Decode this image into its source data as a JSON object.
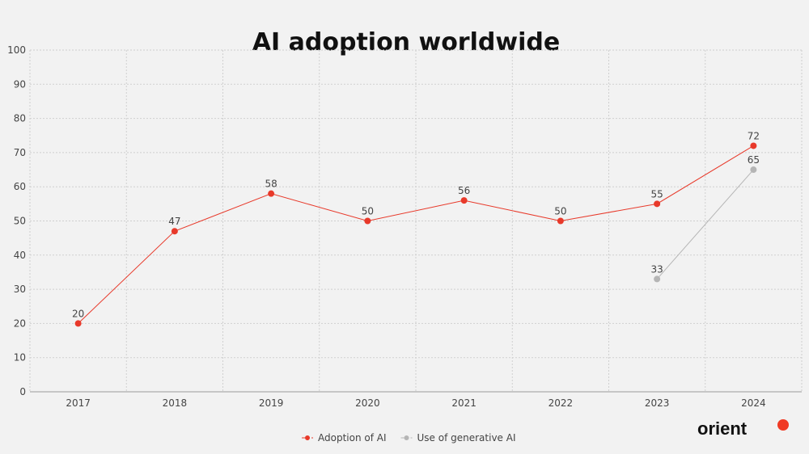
{
  "chart_data": {
    "type": "line",
    "title": "AI adoption worldwide",
    "categories": [
      "2017",
      "2018",
      "2019",
      "2020",
      "2021",
      "2022",
      "2023",
      "2024"
    ],
    "ylim": [
      0,
      100
    ],
    "yticks": [
      0,
      10,
      20,
      30,
      40,
      50,
      60,
      70,
      80,
      90,
      100
    ],
    "grid": true,
    "legend_position": "bottom",
    "series": [
      {
        "name": "Adoption of AI",
        "color": "#e8392a",
        "values": [
          20,
          47,
          58,
          50,
          56,
          50,
          55,
          72
        ]
      },
      {
        "name": "Use of generative AI",
        "color": "#b5b5b5",
        "values": [
          null,
          null,
          null,
          null,
          null,
          null,
          33,
          65
        ]
      }
    ]
  },
  "brand": {
    "logo_text": "orient",
    "accent": "#f03a24"
  }
}
